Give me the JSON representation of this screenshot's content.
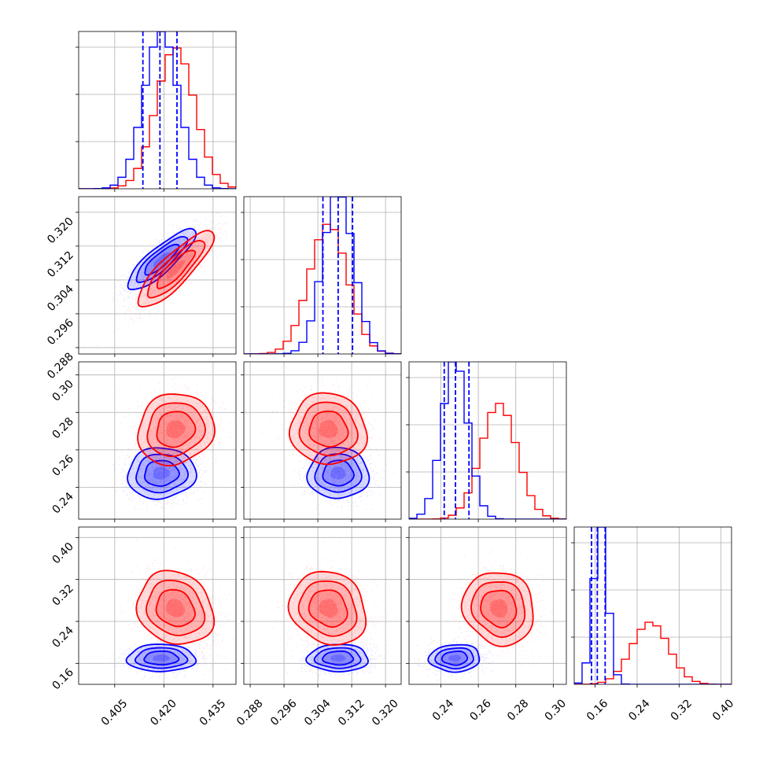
{
  "chart_data": {
    "type": "corner",
    "grid": true,
    "colors": {
      "series_a": "#0000ff",
      "series_b": "#ff0000"
    },
    "parameters": [
      {
        "ticks": [
          "0.405",
          "0.420",
          "0.435"
        ],
        "range": [
          0.394,
          0.442
        ]
      },
      {
        "ticks": [
          "0.288",
          "0.296",
          "0.304",
          "0.312",
          "0.320"
        ],
        "range": [
          0.2865,
          0.3237
        ]
      },
      {
        "ticks": [
          "0.24",
          "0.26",
          "0.28",
          "0.30"
        ],
        "range": [
          0.223,
          0.307
        ]
      },
      {
        "ticks": [
          "0.16",
          "0.24",
          "0.32",
          "0.40"
        ],
        "range": [
          0.12,
          0.42
        ]
      }
    ],
    "series": [
      {
        "color": "#0000ff",
        "means": [
          0.4192,
          0.3088,
          0.2475,
          0.17
        ],
        "sigmas": [
          0.0052,
          0.0036,
          0.0068,
          0.013
        ],
        "quantiles": [
          [
            0.4136,
            0.4188,
            0.424
          ],
          [
            0.3052,
            0.3088,
            0.3122
          ],
          [
            0.2418,
            0.2478,
            0.255
          ],
          [
            0.153,
            0.164,
            0.179
          ]
        ],
        "correlations": {
          "0-1": 0.85,
          "0-2": 0.05,
          "0-3": 0.0,
          "1-2": 0.0,
          "1-3": 0.0,
          "2-3": 0.05
        }
      },
      {
        "color": "#ff0000",
        "means": [
          0.4235,
          0.3065,
          0.271,
          0.265
        ],
        "sigmas": [
          0.0058,
          0.0045,
          0.0095,
          0.035
        ],
        "correlations": {
          "0-1": 0.85,
          "0-2": 0.1,
          "0-3": -0.15,
          "1-2": -0.05,
          "1-3": -0.15,
          "2-3": -0.1
        }
      }
    ]
  }
}
